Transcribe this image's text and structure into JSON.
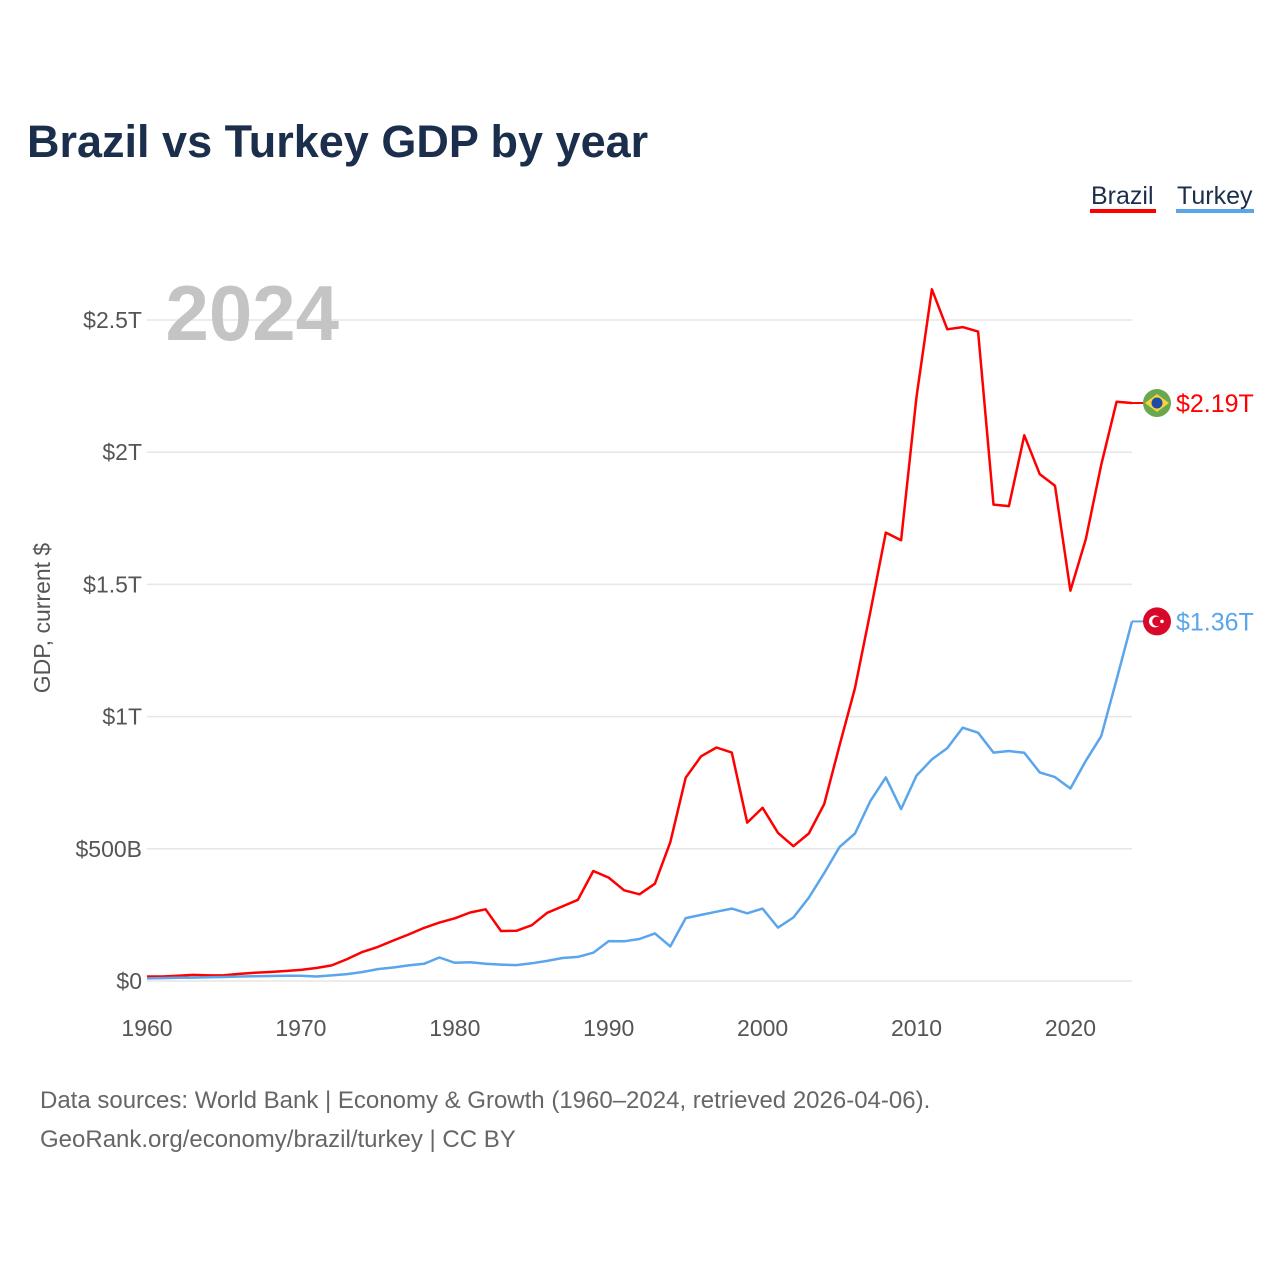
{
  "title": "Brazil vs Turkey GDP by year",
  "year_label": "2024",
  "footer": {
    "line1": "Data sources: World Bank | Economy & Growth (1960–2024, retrieved 2026-04-06).",
    "line2": "GeoRank.org/economy/brazil/turkey | CC BY"
  },
  "chart_data": {
    "type": "line",
    "title": "Brazil vs Turkey GDP by year",
    "xlabel": "",
    "ylabel": "GDP, current $",
    "xlim": [
      1960,
      2024
    ],
    "ylim": [
      0,
      2.5
    ],
    "y_unit": "trillion USD",
    "grid": true,
    "legend_position": "top-right",
    "x_ticks": [
      1960,
      1970,
      1980,
      1990,
      2000,
      2010,
      2020
    ],
    "x_tick_labels": [
      "1960",
      "1970",
      "1980",
      "1990",
      "2000",
      "2010",
      "2020"
    ],
    "y_ticks": [
      0,
      0.5,
      1,
      1.5,
      2,
      2.5
    ],
    "y_tick_labels": [
      "$0",
      "$500B",
      "$1T",
      "$1.5T",
      "$2T",
      "$2.5T"
    ],
    "x": [
      1960,
      1961,
      1962,
      1963,
      1964,
      1965,
      1966,
      1967,
      1968,
      1969,
      1970,
      1971,
      1972,
      1973,
      1974,
      1975,
      1976,
      1977,
      1978,
      1979,
      1980,
      1981,
      1982,
      1983,
      1984,
      1985,
      1986,
      1987,
      1988,
      1989,
      1990,
      1991,
      1992,
      1993,
      1994,
      1995,
      1996,
      1997,
      1998,
      1999,
      2000,
      2001,
      2002,
      2003,
      2004,
      2005,
      2006,
      2007,
      2008,
      2009,
      2010,
      2011,
      2012,
      2013,
      2014,
      2015,
      2016,
      2017,
      2018,
      2019,
      2020,
      2021,
      2022,
      2023,
      2024
    ],
    "series": [
      {
        "name": "Brazil",
        "color": "#ff0000",
        "end_label": "$2.19T",
        "flag": "brazil-flag",
        "values": [
          0.017,
          0.017,
          0.02,
          0.023,
          0.021,
          0.022,
          0.027,
          0.031,
          0.034,
          0.038,
          0.042,
          0.049,
          0.059,
          0.083,
          0.11,
          0.129,
          0.153,
          0.176,
          0.201,
          0.221,
          0.237,
          0.259,
          0.271,
          0.189,
          0.19,
          0.211,
          0.258,
          0.282,
          0.307,
          0.416,
          0.391,
          0.343,
          0.328,
          0.368,
          0.525,
          0.769,
          0.85,
          0.883,
          0.864,
          0.599,
          0.655,
          0.56,
          0.51,
          0.558,
          0.669,
          0.892,
          1.108,
          1.397,
          1.696,
          1.667,
          2.209,
          2.616,
          2.465,
          2.473,
          2.456,
          1.802,
          1.796,
          2.064,
          1.917,
          1.873,
          1.476,
          1.671,
          1.952,
          2.191,
          2.186
        ]
      },
      {
        "name": "Turkey",
        "color": "#5aa5ec",
        "end_label": "$1.36T",
        "flag": "turkey-flag",
        "values": [
          0.01,
          0.011,
          0.012,
          0.013,
          0.014,
          0.015,
          0.017,
          0.018,
          0.019,
          0.02,
          0.02,
          0.017,
          0.021,
          0.026,
          0.034,
          0.045,
          0.051,
          0.059,
          0.065,
          0.089,
          0.069,
          0.071,
          0.065,
          0.062,
          0.06,
          0.067,
          0.076,
          0.087,
          0.091,
          0.107,
          0.151,
          0.15,
          0.159,
          0.18,
          0.131,
          0.238,
          0.25,
          0.262,
          0.274,
          0.256,
          0.274,
          0.202,
          0.24,
          0.315,
          0.408,
          0.507,
          0.558,
          0.681,
          0.77,
          0.65,
          0.777,
          0.838,
          0.881,
          0.958,
          0.939,
          0.864,
          0.87,
          0.863,
          0.789,
          0.771,
          0.728,
          0.833,
          0.926,
          1.14,
          1.36
        ]
      }
    ]
  }
}
